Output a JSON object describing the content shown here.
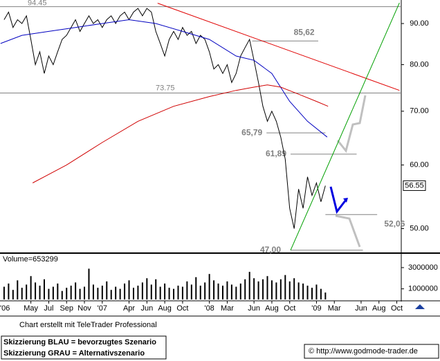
{
  "chart_data": [
    {
      "type": "line",
      "log_scale": true,
      "xlim": [
        0.54,
        45.5
      ],
      "ylim": [
        46.7,
        95.9
      ],
      "xticks": [
        {
          "value": 0,
          "label": "'06"
        },
        {
          "value": 4,
          "label": "May"
        },
        {
          "value": 6,
          "label": "Jul"
        },
        {
          "value": 8,
          "label": "Sep"
        },
        {
          "value": 10,
          "label": "Nov"
        },
        {
          "value": 12,
          "label": "'07"
        },
        {
          "value": 15,
          "label": "Apr"
        },
        {
          "value": 17,
          "label": "Jun"
        },
        {
          "value": 19,
          "label": "Aug"
        },
        {
          "value": 21,
          "label": "Oct"
        },
        {
          "value": 24,
          "label": "'08"
        },
        {
          "value": 26,
          "label": "Mar"
        },
        {
          "value": 29,
          "label": "Jun"
        },
        {
          "value": 31,
          "label": "Aug"
        },
        {
          "value": 33,
          "label": "Oct"
        },
        {
          "value": 36,
          "label": "'09"
        },
        {
          "value": 38,
          "label": "Mar"
        },
        {
          "value": 41,
          "label": "Jun"
        },
        {
          "value": 43,
          "label": "Aug"
        },
        {
          "value": 45,
          "label": "Oct"
        }
      ],
      "yticks": [
        {
          "value": 50,
          "label": "50.00"
        },
        {
          "value": 60,
          "label": "60.00"
        },
        {
          "value": 70,
          "label": "70.00"
        },
        {
          "value": 80,
          "label": "80.00"
        },
        {
          "value": 90,
          "label": "90.00"
        }
      ],
      "series": [
        {
          "color": "#000000",
          "x": [
            1,
            1.5,
            2,
            2.5,
            3,
            3.5,
            4,
            4.5,
            5,
            5.5,
            6,
            6.5,
            7,
            7.5,
            8,
            8.5,
            9,
            9.5,
            10,
            10.5,
            11,
            11.5,
            12,
            12.5,
            13,
            13.5,
            14,
            14.5,
            15,
            15.5,
            16,
            16.5,
            17,
            17.5,
            18,
            18.5,
            19,
            19.5,
            20,
            20.5,
            21,
            21.5,
            22,
            22.5,
            23,
            23.5,
            24,
            24.5,
            25,
            25.5,
            26,
            26.5,
            27,
            27.5,
            28,
            28.5,
            29,
            29.5,
            30,
            30.5,
            31,
            31.5,
            32,
            32.5,
            33,
            33.5,
            34,
            34.5,
            35,
            35.5,
            36,
            36.5,
            37
          ],
          "values": [
            91,
            93,
            89,
            91,
            90,
            92,
            86,
            80,
            83,
            78,
            82,
            80,
            83,
            86,
            87,
            89,
            91,
            88,
            90,
            92,
            90,
            91,
            89,
            91,
            92,
            90,
            92,
            93,
            91,
            93,
            94,
            92,
            94,
            93,
            88,
            85,
            82,
            86,
            88,
            86,
            89,
            87,
            88,
            85,
            87,
            86,
            83,
            79,
            80,
            78,
            80,
            76,
            78,
            82,
            84,
            86,
            81,
            76,
            71,
            68,
            70,
            68,
            65,
            61,
            53,
            50,
            56,
            53,
            58,
            55,
            57,
            54,
            56.55
          ]
        },
        {
          "color": "#0000c0",
          "x": [
            0.6,
            3,
            6,
            9,
            12,
            15,
            18,
            21,
            24,
            27,
            29,
            31,
            33,
            35,
            37.2
          ],
          "values": [
            85,
            87,
            88,
            89,
            90,
            91,
            90,
            88,
            86,
            82,
            81,
            78,
            72,
            68,
            65
          ]
        },
        {
          "color": "#d00000",
          "x": [
            4.2,
            8,
            12,
            16,
            20,
            24,
            27,
            29,
            30.5,
            32,
            34,
            36,
            37.3
          ],
          "values": [
            57,
            60,
            64,
            68,
            71,
            73,
            74.3,
            75,
            75.5,
            75,
            73.5,
            72,
            71
          ]
        }
      ],
      "trendlines": [
        {
          "color": "#e00000",
          "x": [
            18.2,
            45.3
          ],
          "values": [
            95.4,
            74.3
          ]
        },
        {
          "color": "#00a000",
          "x": [
            33.1,
            45.3
          ],
          "values": [
            47.0,
            95.5
          ]
        }
      ],
      "levels": [
        {
          "value": 94.45,
          "label": "94.45",
          "x": [
            0.54,
            45.5
          ]
        },
        {
          "value": 73.75,
          "label": "73.75",
          "x": [
            0.54,
            45.5
          ]
        },
        {
          "value": 85.62,
          "label": "85,62",
          "x": [
            28.8,
            36.2
          ]
        },
        {
          "value": 65.79,
          "label": "65,79",
          "x": [
            30.4,
            37.0
          ]
        },
        {
          "value": 61.89,
          "label": "61,89",
          "x": [
            33.1,
            40.5
          ]
        },
        {
          "value": 52.06,
          "label": "52,06",
          "x": [
            37.0,
            42.8
          ]
        },
        {
          "value": 47.0,
          "label": "47,00",
          "x": [
            33.1,
            41.2
          ]
        }
      ],
      "last_price": {
        "value": 56.55,
        "label": "56.55"
      }
    },
    {
      "type": "bar",
      "title": "Volume=653299",
      "color": "#000000",
      "ylim": [
        0,
        4300000
      ],
      "yticks": [
        1000000,
        3000000
      ],
      "x": [
        1,
        1.5,
        2,
        2.5,
        3,
        3.5,
        4,
        4.5,
        5,
        5.5,
        6,
        6.5,
        7,
        7.5,
        8,
        8.5,
        9,
        9.5,
        10,
        10.5,
        11,
        11.5,
        12,
        12.5,
        13,
        13.5,
        14,
        14.5,
        15,
        15.5,
        16,
        16.5,
        17,
        17.5,
        18,
        18.5,
        19,
        19.5,
        20,
        20.5,
        21,
        21.5,
        22,
        22.5,
        23,
        23.5,
        24,
        24.5,
        25,
        25.5,
        26,
        26.5,
        27,
        27.5,
        28,
        28.5,
        29,
        29.5,
        30,
        30.5,
        31,
        31.5,
        32,
        32.5,
        33,
        33.5,
        34,
        34.5,
        35,
        35.5,
        36,
        36.5,
        37
      ],
      "values": [
        1200000,
        1500000,
        900000,
        1800000,
        1100000,
        1400000,
        2200000,
        1600000,
        1300000,
        1900000,
        1000000,
        1200000,
        1500000,
        800000,
        1100000,
        1300000,
        1600000,
        1000000,
        1200000,
        2900000,
        1400000,
        1100000,
        1300000,
        1700000,
        900000,
        1200000,
        1000000,
        1500000,
        1800000,
        1100000,
        1300000,
        1600000,
        2000000,
        1400000,
        1900000,
        1200000,
        1500000,
        1100000,
        1000000,
        1300000,
        1200000,
        1700000,
        1400000,
        2100000,
        1300000,
        1600000,
        2400000,
        1800000,
        1500000,
        1300000,
        1700000,
        1400000,
        1200000,
        1500000,
        1900000,
        2600000,
        2000000,
        1700000,
        1900000,
        2200000,
        1800000,
        1600000,
        1900000,
        2300000,
        1700000,
        2000000,
        1600000,
        1500000,
        1300000,
        1100000,
        1400000,
        1000000,
        653299
      ]
    }
  ],
  "footer": {
    "credit": "Chart erstellt mit TeleTrader Professional",
    "legend_blue": "Skizzierung BLAU = bevorzugtes Szenario",
    "legend_grey": "Skizzierung GRAU = Alternativszenario",
    "url": "© http://www.godmode-trader.de"
  }
}
